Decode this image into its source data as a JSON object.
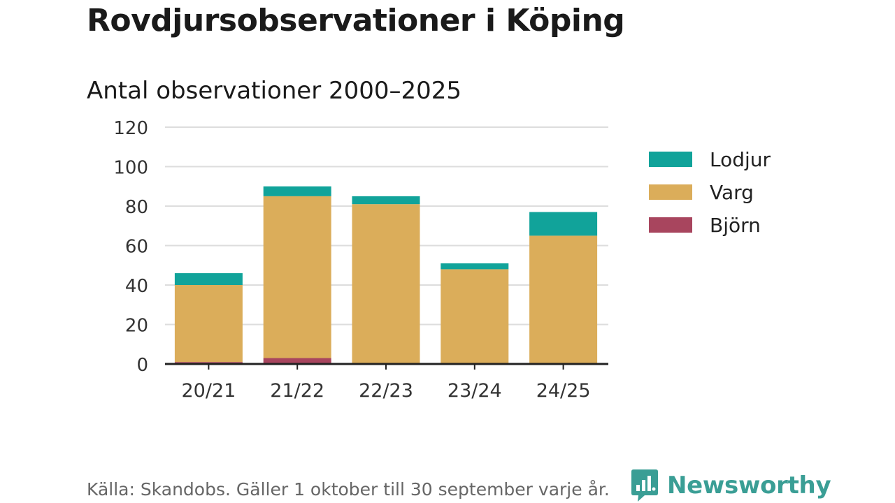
{
  "header": {
    "title": "Rovdjursobservationer i Köping",
    "subtitle": "Antal observationer 2000–2025"
  },
  "footer": {
    "source": "Källa: Skandobs. Gäller 1 oktober till 30 september varje år.",
    "brand": "Newsworthy"
  },
  "colors": {
    "lodjur": "#11a39a",
    "varg": "#dbad5a",
    "bjorn": "#a8455e",
    "grid": "#dddddd",
    "axis": "#222222",
    "brand": "#3a9e95"
  },
  "chart_data": {
    "type": "bar",
    "stacked": true,
    "title": "Antal observationer 2000–2025",
    "categories": [
      "20/21",
      "21/22",
      "22/23",
      "23/24",
      "24/25"
    ],
    "series": [
      {
        "name": "Björn",
        "color": "#a8455e",
        "values": [
          1,
          3,
          0,
          0,
          0
        ]
      },
      {
        "name": "Varg",
        "color": "#dbad5a",
        "values": [
          39,
          82,
          81,
          48,
          65
        ]
      },
      {
        "name": "Lodjur",
        "color": "#11a39a",
        "values": [
          6,
          5,
          4,
          3,
          12
        ]
      }
    ],
    "legend": [
      "Lodjur",
      "Varg",
      "Björn"
    ],
    "legend_position": "right",
    "yticks": [
      "0",
      "20",
      "40",
      "60",
      "80",
      "100",
      "120"
    ],
    "ylim": [
      0,
      120
    ],
    "xlabel": "",
    "ylabel": "",
    "grid": true
  }
}
